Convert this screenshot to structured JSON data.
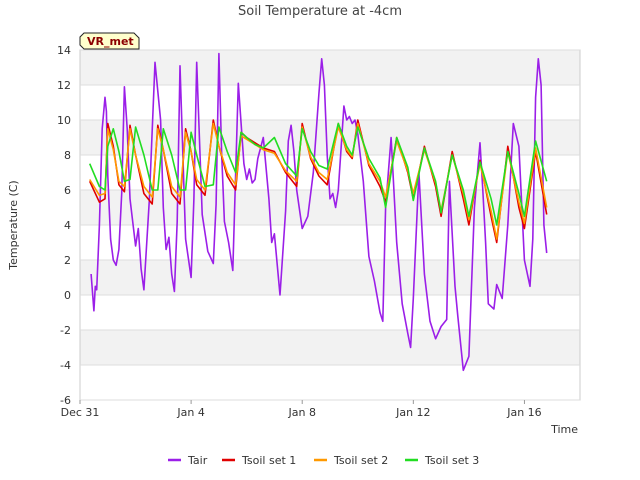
{
  "chart_data": {
    "type": "line",
    "title": "Soil Temperature at -4cm",
    "xlabel": "Time",
    "ylabel": "Temperature (C)",
    "badge": "VR_met",
    "xlim": [
      0,
      18
    ],
    "ylim": [
      -6,
      14
    ],
    "yticks": [
      -6,
      -4,
      -2,
      0,
      2,
      4,
      6,
      8,
      10,
      12,
      14
    ],
    "xticks": [
      {
        "value": 0,
        "label": "Dec 31"
      },
      {
        "value": 4,
        "label": "Jan 4"
      },
      {
        "value": 8,
        "label": "Jan 8"
      },
      {
        "value": 12,
        "label": "Jan 12"
      },
      {
        "value": 16,
        "label": "Jan 16"
      }
    ],
    "grid": true,
    "legend_position": "bottom",
    "colors": {
      "Tair": "#9b1fe8",
      "Tsoil set 1": "#e00000",
      "Tsoil set 2": "#ff9900",
      "Tsoil set 3": "#22dd22"
    },
    "series": [
      {
        "name": "Tair",
        "x": [
          0.4,
          0.5,
          0.55,
          0.6,
          0.7,
          0.8,
          0.9,
          0.95,
          1.0,
          1.1,
          1.2,
          1.3,
          1.4,
          1.5,
          1.6,
          1.7,
          1.8,
          2.0,
          2.1,
          2.2,
          2.3,
          2.5,
          2.7,
          2.9,
          3.0,
          3.1,
          3.2,
          3.3,
          3.4,
          3.5,
          3.6,
          3.8,
          4.0,
          4.1,
          4.2,
          4.3,
          4.4,
          4.6,
          4.8,
          4.9,
          5.0,
          5.1,
          5.2,
          5.35,
          5.5,
          5.7,
          5.9,
          6.0,
          6.1,
          6.2,
          6.3,
          6.4,
          6.6,
          6.8,
          6.9,
          7.0,
          7.2,
          7.4,
          7.5,
          7.6,
          7.7,
          7.8,
          8.0,
          8.2,
          8.4,
          8.6,
          8.7,
          8.8,
          8.9,
          9.0,
          9.1,
          9.2,
          9.3,
          9.5,
          9.6,
          9.7,
          9.8,
          9.9,
          10.0,
          10.2,
          10.4,
          10.6,
          10.8,
          10.9,
          11.0,
          11.2,
          11.4,
          11.6,
          11.8,
          11.9,
          12.0,
          12.2,
          12.4,
          12.6,
          12.8,
          13.0,
          13.2,
          13.3,
          13.5,
          13.6,
          13.8,
          14.0,
          14.2,
          14.4,
          14.5,
          14.6,
          14.7,
          14.9,
          15.0,
          15.2,
          15.4,
          15.6,
          15.8,
          16.0,
          16.2,
          16.3,
          16.4,
          16.5,
          16.6,
          16.7,
          16.8
        ],
        "values": [
          1.2,
          -0.9,
          0.5,
          0.3,
          4.0,
          9.5,
          11.3,
          10.5,
          6.8,
          3.2,
          2.0,
          1.7,
          2.6,
          5.8,
          11.9,
          9.5,
          5.5,
          2.8,
          3.8,
          1.5,
          0.3,
          5.5,
          13.3,
          10.0,
          5.0,
          2.6,
          3.3,
          1.2,
          0.2,
          4.2,
          13.1,
          3.2,
          1.0,
          5.5,
          13.3,
          9.0,
          4.6,
          2.5,
          1.8,
          5.2,
          13.8,
          8.0,
          4.2,
          3.0,
          1.4,
          12.1,
          7.5,
          6.6,
          7.2,
          6.4,
          6.6,
          7.8,
          9.0,
          5.5,
          3.0,
          3.5,
          0.0,
          4.8,
          8.8,
          9.7,
          8.2,
          6.0,
          3.8,
          4.5,
          7.0,
          11.5,
          13.5,
          12.0,
          8.0,
          5.5,
          5.8,
          5.0,
          6.0,
          10.8,
          10.0,
          10.2,
          9.8,
          10.0,
          9.2,
          6.5,
          2.2,
          0.8,
          -1.0,
          -1.5,
          5.0,
          9.0,
          3.0,
          -0.5,
          -2.2,
          -3.0,
          -0.2,
          7.0,
          1.2,
          -1.5,
          -2.5,
          -1.8,
          -1.4,
          6.5,
          0.5,
          -1.2,
          -4.3,
          -3.5,
          5.0,
          8.7,
          6.0,
          3.0,
          -0.5,
          -0.8,
          0.6,
          -0.2,
          4.0,
          9.8,
          8.5,
          2.0,
          0.5,
          3.2,
          11.3,
          13.5,
          12.0,
          4.0,
          2.4
        ]
      },
      {
        "name": "Tsoil set 1",
        "x": [
          0.35,
          0.7,
          0.9,
          1.0,
          1.2,
          1.4,
          1.6,
          1.8,
          2.0,
          2.3,
          2.6,
          2.8,
          3.0,
          3.3,
          3.6,
          3.8,
          4.0,
          4.2,
          4.5,
          4.8,
          5.0,
          5.3,
          5.6,
          5.8,
          6.0,
          6.3,
          6.6,
          7.0,
          7.4,
          7.8,
          8.0,
          8.3,
          8.6,
          8.9,
          9.3,
          9.6,
          9.8,
          10.0,
          10.4,
          10.8,
          11.0,
          11.4,
          11.8,
          12.0,
          12.4,
          12.8,
          13.0,
          13.4,
          13.8,
          14.0,
          14.4,
          14.8,
          15.0,
          15.4,
          15.8,
          16.0,
          16.4,
          16.8
        ],
        "values": [
          6.5,
          5.3,
          5.5,
          9.8,
          8.5,
          6.3,
          5.9,
          9.7,
          8.0,
          5.8,
          5.2,
          9.7,
          8.3,
          5.8,
          5.2,
          9.5,
          8.2,
          6.3,
          5.7,
          10.0,
          8.5,
          6.8,
          6.0,
          9.3,
          9.0,
          8.7,
          8.4,
          8.2,
          7.0,
          6.2,
          9.8,
          7.8,
          6.8,
          6.3,
          9.8,
          8.2,
          7.8,
          10.0,
          7.4,
          6.2,
          5.3,
          9.0,
          7.0,
          5.5,
          8.5,
          6.2,
          4.5,
          8.2,
          5.5,
          4.0,
          7.7,
          4.5,
          3.0,
          8.5,
          5.0,
          3.8,
          8.2,
          4.6
        ]
      },
      {
        "name": "Tsoil set 2",
        "x": [
          0.35,
          0.7,
          0.9,
          1.0,
          1.2,
          1.4,
          1.6,
          1.8,
          2.0,
          2.3,
          2.6,
          2.8,
          3.0,
          3.3,
          3.6,
          3.8,
          4.0,
          4.2,
          4.5,
          4.8,
          5.0,
          5.3,
          5.6,
          5.8,
          6.0,
          6.3,
          6.6,
          7.0,
          7.4,
          7.8,
          8.0,
          8.3,
          8.6,
          8.9,
          9.3,
          9.6,
          9.8,
          10.0,
          10.4,
          10.8,
          11.0,
          11.4,
          11.8,
          12.0,
          12.4,
          12.8,
          13.0,
          13.4,
          13.8,
          14.0,
          14.4,
          14.8,
          15.0,
          15.4,
          15.8,
          16.0,
          16.4,
          16.8
        ],
        "values": [
          6.6,
          5.7,
          5.8,
          9.5,
          8.3,
          6.5,
          6.2,
          9.5,
          8.0,
          6.2,
          5.6,
          9.5,
          8.3,
          6.2,
          5.6,
          9.3,
          8.2,
          6.6,
          6.0,
          9.8,
          8.5,
          7.0,
          6.3,
          9.1,
          8.9,
          8.6,
          8.3,
          8.1,
          7.1,
          6.5,
          9.6,
          7.9,
          7.0,
          6.6,
          9.6,
          8.3,
          7.9,
          9.8,
          7.5,
          6.5,
          5.6,
          8.8,
          7.1,
          5.8,
          8.3,
          6.4,
          4.8,
          8.0,
          5.8,
          4.3,
          7.5,
          4.8,
          3.2,
          8.2,
          5.3,
          4.1,
          8.4,
          5.0
        ]
      },
      {
        "name": "Tsoil set 3",
        "x": [
          0.35,
          0.7,
          0.9,
          1.0,
          1.2,
          1.4,
          1.6,
          1.8,
          2.0,
          2.3,
          2.6,
          2.8,
          3.0,
          3.3,
          3.6,
          3.8,
          4.0,
          4.2,
          4.5,
          4.8,
          5.0,
          5.3,
          5.6,
          5.8,
          6.0,
          6.3,
          6.6,
          7.0,
          7.4,
          7.8,
          8.0,
          8.3,
          8.6,
          8.9,
          9.3,
          9.6,
          9.8,
          10.0,
          10.4,
          10.8,
          11.0,
          11.4,
          11.8,
          12.0,
          12.4,
          12.8,
          13.0,
          13.4,
          13.8,
          14.0,
          14.4,
          14.8,
          15.0,
          15.4,
          15.8,
          16.0,
          16.4,
          16.8
        ],
        "values": [
          7.5,
          6.2,
          6.0,
          8.5,
          9.5,
          8.2,
          6.5,
          6.6,
          9.6,
          8.0,
          6.0,
          6.0,
          9.5,
          8.0,
          6.0,
          6.0,
          9.3,
          8.0,
          6.2,
          6.3,
          9.6,
          8.2,
          7.0,
          9.3,
          9.0,
          8.6,
          8.4,
          9.0,
          7.5,
          6.8,
          9.5,
          8.2,
          7.4,
          7.2,
          9.8,
          8.5,
          8.0,
          9.6,
          7.8,
          6.7,
          5.0,
          9.0,
          7.3,
          5.4,
          8.4,
          6.5,
          4.7,
          8.0,
          6.0,
          4.5,
          7.6,
          5.5,
          4.0,
          8.2,
          5.8,
          4.5,
          8.8,
          6.5
        ]
      }
    ]
  }
}
